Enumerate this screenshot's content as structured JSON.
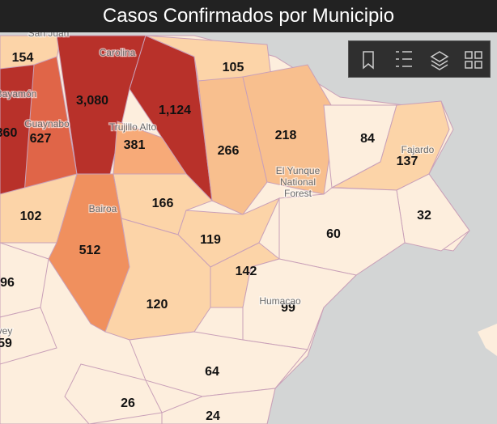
{
  "title": "Casos Confirmados por Municipio",
  "places": [
    "San Juan",
    "Carolina",
    "Bayamón",
    "Guaynabo",
    "Trujillo Alto",
    "Bairoa",
    "El Yunque",
    "National",
    "Forest",
    "Fajardo",
    "Humacao",
    "vey"
  ],
  "counts": [
    {
      "value": 154,
      "label": "154"
    },
    {
      "value": 360,
      "label": "360"
    },
    {
      "value": 627,
      "label": "627"
    },
    {
      "value": 3080,
      "label": "3,080"
    },
    {
      "value": 1124,
      "label": "1,124"
    },
    {
      "value": 381,
      "label": "381"
    },
    {
      "value": 105,
      "label": "105"
    },
    {
      "value": 266,
      "label": "266"
    },
    {
      "value": 218,
      "label": "218"
    },
    {
      "value": 84,
      "label": "84"
    },
    {
      "value": 137,
      "label": "137"
    },
    {
      "value": 32,
      "label": "32"
    },
    {
      "value": 60,
      "label": "60"
    },
    {
      "value": 102,
      "label": "102"
    },
    {
      "value": 166,
      "label": "166"
    },
    {
      "value": 512,
      "label": "512"
    },
    {
      "value": 119,
      "label": "119"
    },
    {
      "value": 142,
      "label": "142"
    },
    {
      "value": 96,
      "label": "96"
    },
    {
      "value": 120,
      "label": "120"
    },
    {
      "value": 99,
      "label": "99"
    },
    {
      "value": 59,
      "label": "59"
    },
    {
      "value": 64,
      "label": "64"
    },
    {
      "value": 26,
      "label": "26"
    },
    {
      "value": 24,
      "label": "24"
    }
  ]
}
